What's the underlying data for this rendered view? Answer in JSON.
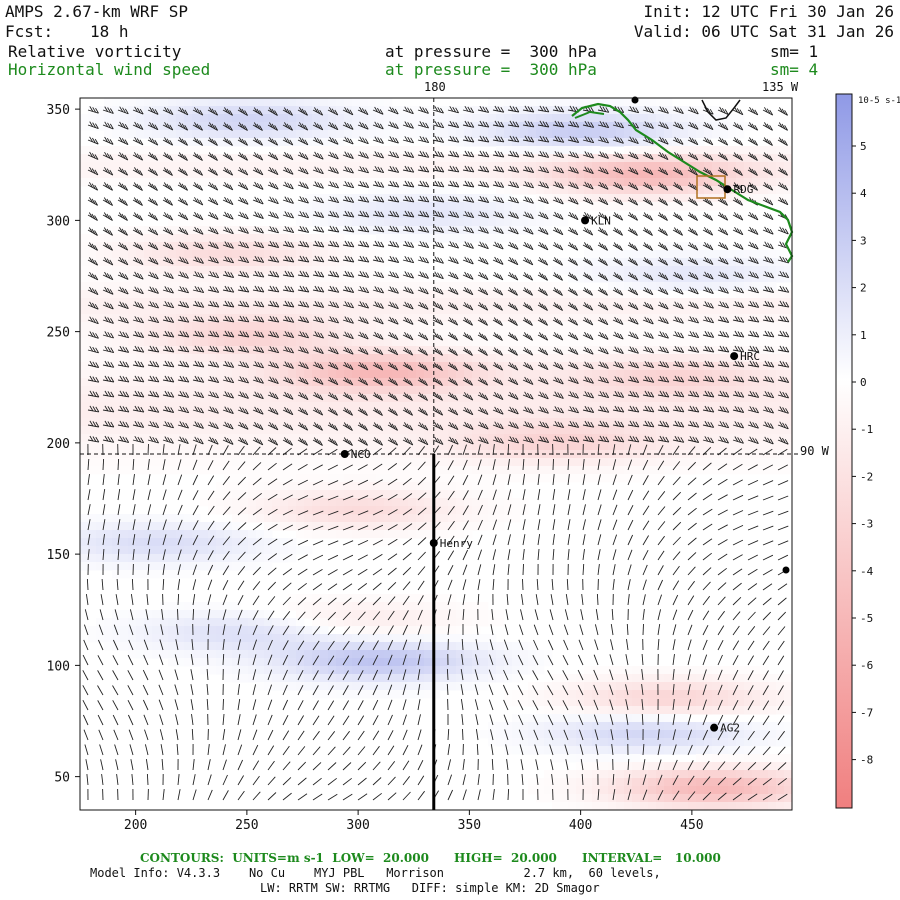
{
  "header": {
    "model": "AMPS 2.67-km WRF SP",
    "forecast_label": "Fcst:",
    "forecast_value": "18 h",
    "init": "Init: 12 UTC Fri 30 Jan 26",
    "valid": "Valid: 06 UTC Sat 31 Jan 26",
    "field1_name": "Relative vorticity",
    "field1_level": "at pressure =  300 hPa",
    "field1_smooth": "sm= 1",
    "field2_name": "Horizontal wind speed",
    "field2_level": "at pressure =  300 hPa",
    "field2_smooth": "sm= 4",
    "field2_color": "#1d8a1d"
  },
  "map_labels": {
    "lon_180": "180",
    "lon_135w": "135 W",
    "lon_90w": "90 W"
  },
  "stations": [
    {
      "name": "RDG",
      "x": 466,
      "y": 314
    },
    {
      "name": "KLN",
      "x": 402,
      "y": 300
    },
    {
      "name": "HRC",
      "x": 469,
      "y": 239
    },
    {
      "name": "NCO",
      "x": 294,
      "y": 195
    },
    {
      "name": "Henry",
      "x": 334,
      "y": 155
    },
    {
      "name": "AG2",
      "x": 460,
      "y": 72
    }
  ],
  "colorbar": {
    "unit": "10-5 s-1",
    "ticks": [
      "5",
      "4",
      "3",
      "2",
      "1",
      "0",
      "-1",
      "-2",
      "-3",
      "-4",
      "-5",
      "-6",
      "-7",
      "-8"
    ],
    "positive_color": "#8f99e6",
    "negative_color": "#f07f7f"
  },
  "footer": {
    "contours": "CONTOURS:  UNITS=m s-1  LOW=  20.000      HIGH=  20.000      INTERVAL=   10.000",
    "model_info": "Model Info: V4.3.3    No Cu    MYJ PBL   Morrison           2.7 km,  60 levels,",
    "physics": "LW: RRTM SW: RRTMG   DIFF: simple KM: 2D Smagor"
  },
  "chart_data": {
    "type": "heatmap",
    "xlim": [
      175,
      495
    ],
    "ylim": [
      35,
      355
    ],
    "x_ticks": [
      200,
      250,
      300,
      350,
      400,
      450
    ],
    "y_ticks": [
      50,
      100,
      150,
      200,
      250,
      300,
      350
    ],
    "color_range": [
      -9,
      6
    ],
    "vorticity_features": [
      {
        "x": 310,
        "y": 232,
        "value": -4.5
      },
      {
        "x": 250,
        "y": 248,
        "value": -3.0
      },
      {
        "x": 440,
        "y": 230,
        "value": -2.5
      },
      {
        "x": 390,
        "y": 200,
        "value": -2.5
      },
      {
        "x": 300,
        "y": 170,
        "value": -2.5
      },
      {
        "x": 240,
        "y": 285,
        "value": -2.5
      },
      {
        "x": 430,
        "y": 320,
        "value": -4.5
      },
      {
        "x": 300,
        "y": 120,
        "value": -1.5
      },
      {
        "x": 440,
        "y": 85,
        "value": -3.0
      },
      {
        "x": 460,
        "y": 45,
        "value": -5.0
      },
      {
        "x": 310,
        "y": 102,
        "value": 3.5
      },
      {
        "x": 250,
        "y": 115,
        "value": 2.0
      },
      {
        "x": 210,
        "y": 155,
        "value": 2.0
      },
      {
        "x": 430,
        "y": 70,
        "value": 2.5
      },
      {
        "x": 400,
        "y": 340,
        "value": 3.0
      },
      {
        "x": 250,
        "y": 345,
        "value": 2.5
      },
      {
        "x": 330,
        "y": 303,
        "value": 1.5
      },
      {
        "x": 450,
        "y": 275,
        "value": 1.5
      }
    ],
    "wind_speed_contours": [
      20
    ],
    "dashed_markers": {
      "x": 334,
      "y": 195
    },
    "transect": {
      "x": 334,
      "y_from": 35,
      "y_to": 195
    }
  }
}
